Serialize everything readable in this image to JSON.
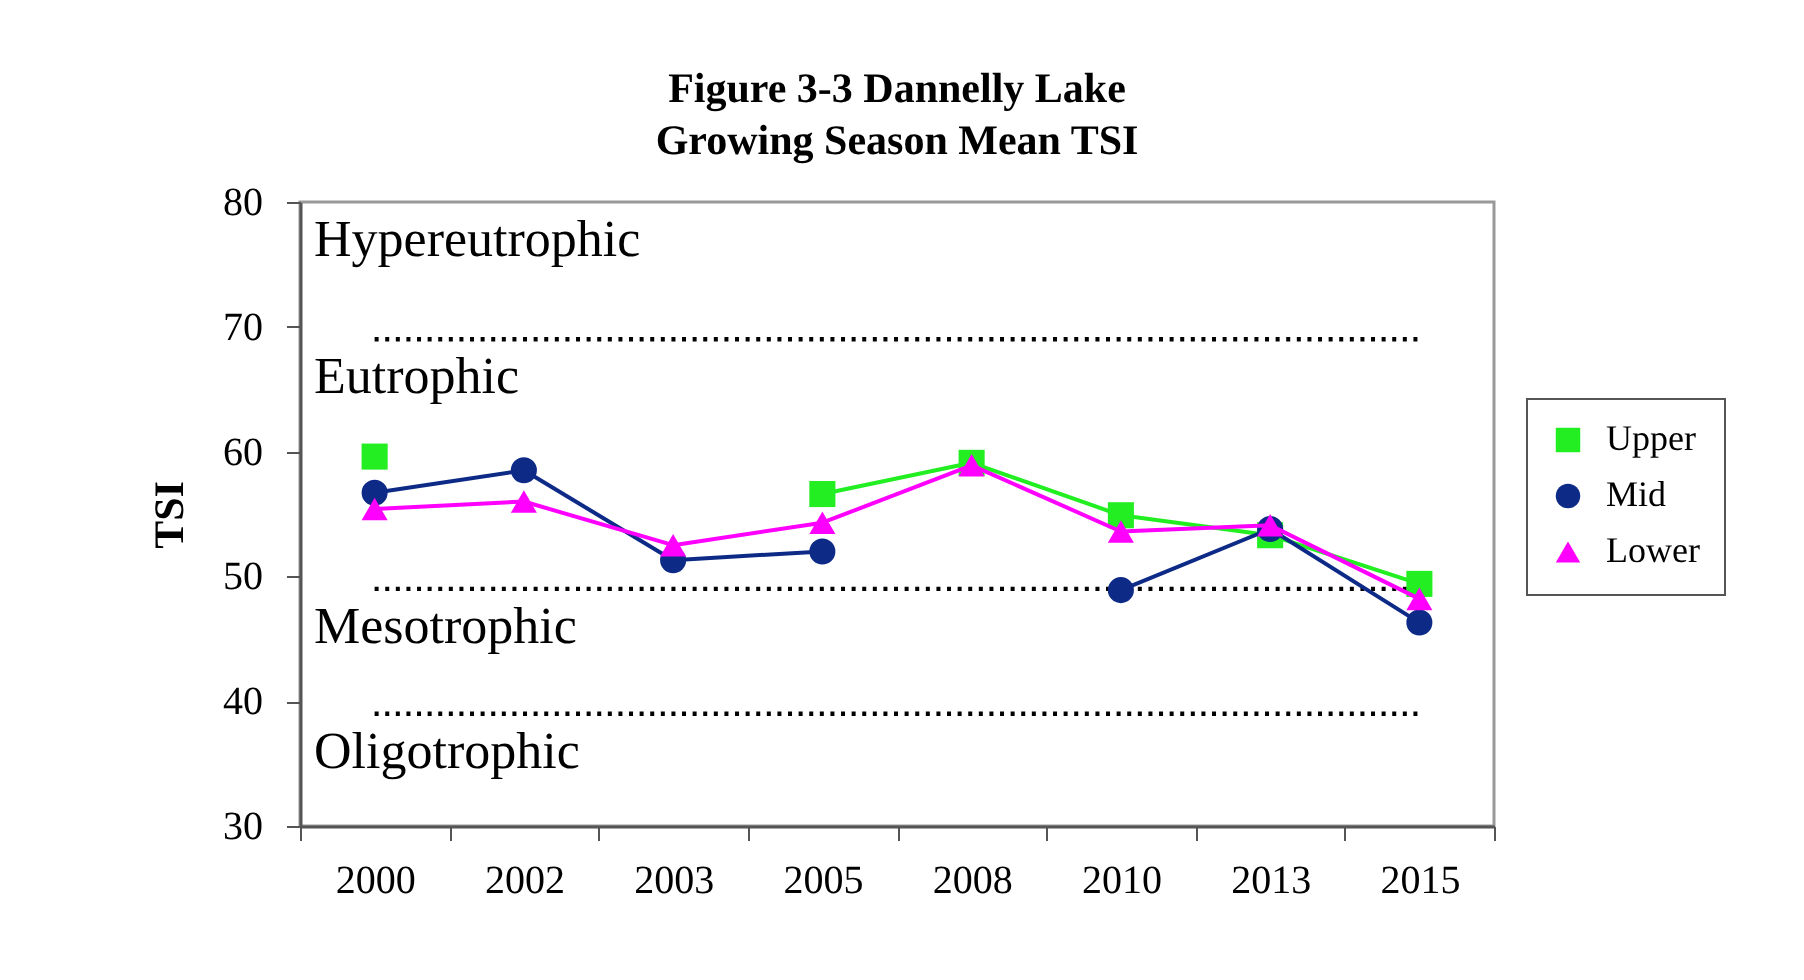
{
  "chart_data": {
    "type": "line",
    "title": "Figure 3-3 Dannelly Lake\nGrowing Season Mean TSI",
    "ylabel": "TSI",
    "categories": [
      "2000",
      "2002",
      "2003",
      "2005",
      "2008",
      "2010",
      "2013",
      "2015"
    ],
    "series": [
      {
        "name": "Upper",
        "color": "#22ee22",
        "marker": "square",
        "values": [
          59.6,
          null,
          null,
          56.6,
          59.1,
          54.9,
          53.3,
          49.4
        ]
      },
      {
        "name": "Mid",
        "color": "#0d2a87",
        "marker": "circle",
        "values": [
          56.7,
          58.5,
          51.3,
          52.0,
          null,
          48.9,
          53.8,
          46.3
        ]
      },
      {
        "name": "Lower",
        "color": "#ff00ff",
        "marker": "triangle",
        "values": [
          55.4,
          56.0,
          52.5,
          54.3,
          58.9,
          53.6,
          54.1,
          48.2
        ]
      }
    ],
    "ylim": [
      30,
      80
    ],
    "yticks": [
      30,
      40,
      50,
      60,
      70,
      80
    ],
    "grid": false,
    "legend": "right",
    "line_style": "solid",
    "ref_lines": [
      {
        "axis": "y",
        "value": 69,
        "color": "#000000",
        "line_style": "dotted"
      },
      {
        "axis": "y",
        "value": 49,
        "color": "#000000",
        "line_style": "dotted"
      },
      {
        "axis": "y",
        "value": 39,
        "color": "#000000",
        "line_style": "dotted"
      }
    ],
    "annotations": [
      "Hypereutrophic",
      "Eutrophic",
      "Mesotrophic",
      "Oligotrophic"
    ]
  }
}
